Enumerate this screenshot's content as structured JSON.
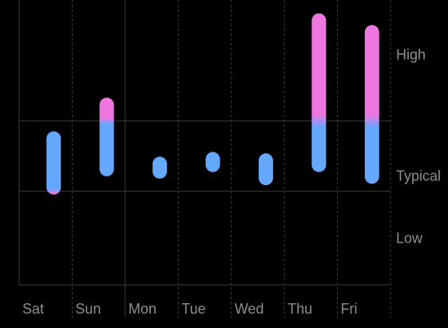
{
  "chart_data": {
    "type": "bar",
    "subtype": "range",
    "categories": [
      "Sat",
      "Sun",
      "Mon",
      "Tue",
      "Wed",
      "Thu",
      "Fri"
    ],
    "ranges": [
      {
        "day": "Sat",
        "low": 0.93,
        "high": 2.28
      },
      {
        "day": "Sun",
        "low": 1.32,
        "high": 3.0
      },
      {
        "day": "Mon",
        "low": 1.27,
        "high": 1.74
      },
      {
        "day": "Tue",
        "low": 1.41,
        "high": 1.84
      },
      {
        "day": "Wed",
        "low": 1.13,
        "high": 1.81
      },
      {
        "day": "Thu",
        "low": 1.41,
        "high": 4.8
      },
      {
        "day": "Fri",
        "low": 1.16,
        "high": 4.55
      }
    ],
    "bands": [
      {
        "label": "Low",
        "from": 0,
        "to": 1
      },
      {
        "label": "Typical",
        "from": 1,
        "to": 2.5
      },
      {
        "label": "High",
        "from": 2.5,
        "to": 5
      }
    ],
    "ylim": [
      -1,
      5
    ],
    "grid": true,
    "colors": {
      "typical": "#64a8ff",
      "outside": "#ee77df",
      "grid": "#3a3a3c",
      "grid_dashed": "#3f3f41",
      "label": "#8e8e93"
    }
  }
}
